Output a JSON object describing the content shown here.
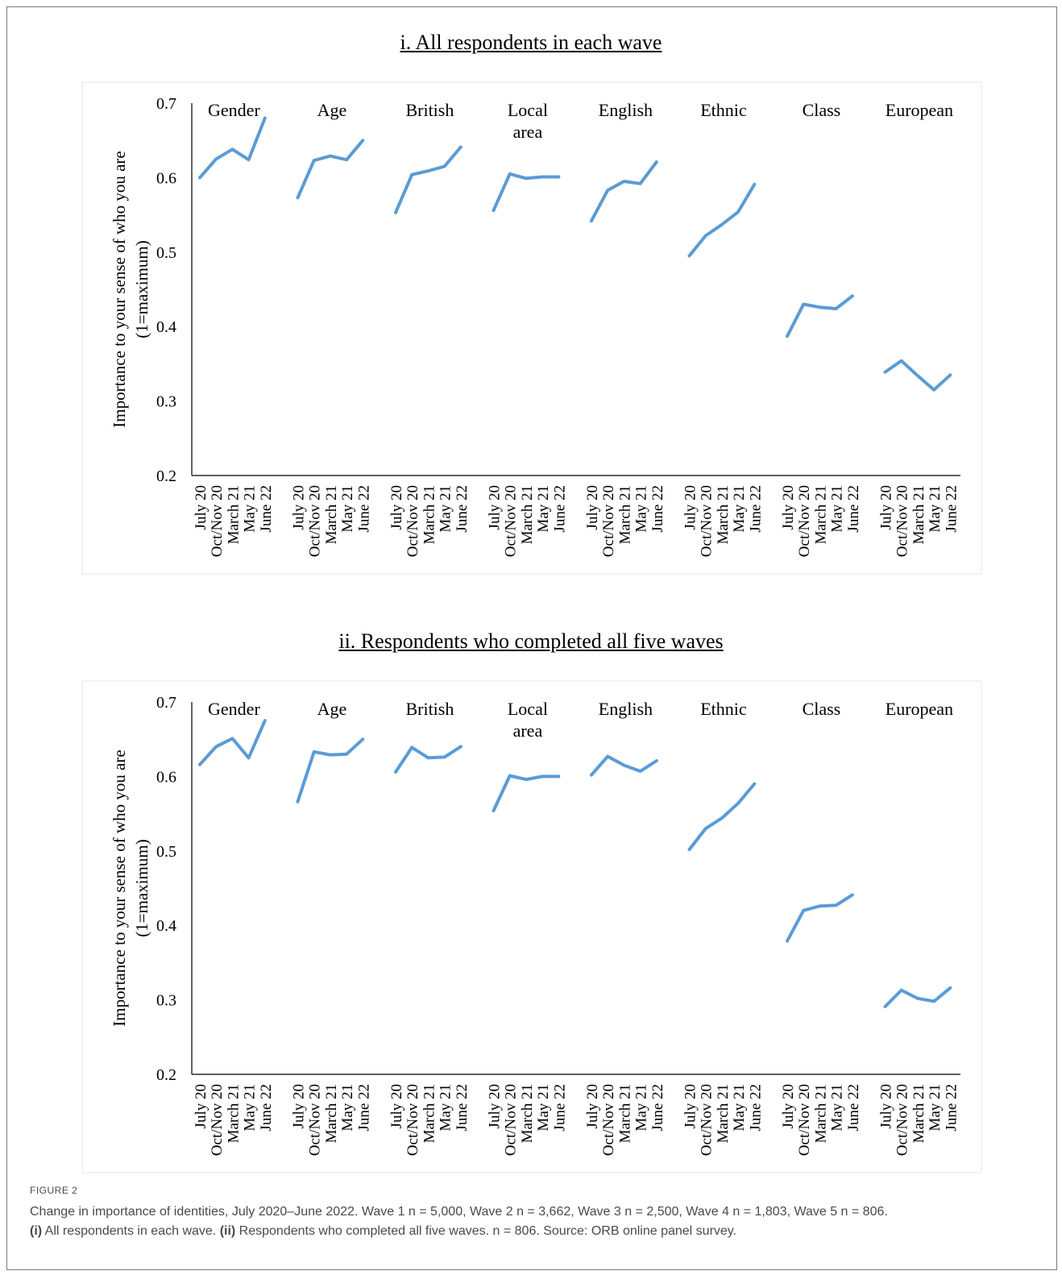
{
  "figure": {
    "label": "FIGURE 2",
    "caption_line1": "Change in importance of identities, July 2020–June 2022. Wave 1 n = 5,000, Wave 2 n = 3,662, Wave 3 n = 2,500, Wave 4 n = 1,803, Wave 5 n = 806.",
    "caption_line2_parts": [
      "(i)",
      " All respondents in each wave. ",
      "(ii)",
      " Respondents who completed all five waves. n = 806. Source: ORB online panel survey."
    ]
  },
  "chart_data": [
    {
      "type": "line",
      "title": "i. All respondents in each wave",
      "ylabel_lines": [
        "Importance to your sense of who you are",
        "(1=maximum)"
      ],
      "ylim": [
        0.2,
        0.7
      ],
      "yticks": [
        "0.2",
        "0.3",
        "0.4",
        "0.5",
        "0.6",
        "0.7"
      ],
      "grid": false,
      "line_color": "#5b9bd5",
      "x": [
        "July 20",
        "Oct/Nov 20",
        "March 21",
        "May 21",
        "June 22"
      ],
      "groups": [
        {
          "label_lines": [
            "Gender"
          ],
          "values": [
            0.6,
            0.625,
            0.638,
            0.624,
            0.68
          ]
        },
        {
          "label_lines": [
            "Age"
          ],
          "values": [
            0.573,
            0.623,
            0.629,
            0.624,
            0.65
          ]
        },
        {
          "label_lines": [
            "British"
          ],
          "values": [
            0.553,
            0.604,
            0.609,
            0.615,
            0.641
          ]
        },
        {
          "label_lines": [
            "Local",
            "area"
          ],
          "values": [
            0.556,
            0.605,
            0.599,
            0.601,
            0.601
          ]
        },
        {
          "label_lines": [
            "English"
          ],
          "values": [
            0.542,
            0.583,
            0.595,
            0.592,
            0.621
          ]
        },
        {
          "label_lines": [
            "Ethnic"
          ],
          "values": [
            0.495,
            0.522,
            0.537,
            0.554,
            0.591
          ]
        },
        {
          "label_lines": [
            "Class"
          ],
          "values": [
            0.387,
            0.43,
            0.426,
            0.424,
            0.441
          ]
        },
        {
          "label_lines": [
            "European"
          ],
          "values": [
            0.339,
            0.354,
            0.334,
            0.315,
            0.335
          ]
        }
      ]
    },
    {
      "type": "line",
      "title": "ii. Respondents who completed all five waves",
      "ylabel_lines": [
        "Importance to your sense of who you are",
        "(1=maximum)"
      ],
      "ylim": [
        0.2,
        0.7
      ],
      "yticks": [
        "0.2",
        "0.3",
        "0.4",
        "0.5",
        "0.6",
        "0.7"
      ],
      "grid": false,
      "line_color": "#5b9bd5",
      "x": [
        "July 20",
        "Oct/Nov 20",
        "March 21",
        "May 21",
        "June 22"
      ],
      "groups": [
        {
          "label_lines": [
            "Gender"
          ],
          "values": [
            0.616,
            0.64,
            0.651,
            0.625,
            0.675
          ]
        },
        {
          "label_lines": [
            "Age"
          ],
          "values": [
            0.566,
            0.633,
            0.629,
            0.63,
            0.65
          ]
        },
        {
          "label_lines": [
            "British"
          ],
          "values": [
            0.606,
            0.639,
            0.625,
            0.626,
            0.64
          ]
        },
        {
          "label_lines": [
            "Local",
            "area"
          ],
          "values": [
            0.554,
            0.601,
            0.596,
            0.6,
            0.6
          ]
        },
        {
          "label_lines": [
            "English"
          ],
          "values": [
            0.602,
            0.627,
            0.615,
            0.607,
            0.621
          ]
        },
        {
          "label_lines": [
            "Ethnic"
          ],
          "values": [
            0.502,
            0.53,
            0.544,
            0.564,
            0.59
          ]
        },
        {
          "label_lines": [
            "Class"
          ],
          "values": [
            0.379,
            0.42,
            0.426,
            0.427,
            0.441
          ]
        },
        {
          "label_lines": [
            "European"
          ],
          "values": [
            0.291,
            0.313,
            0.302,
            0.298,
            0.316
          ]
        }
      ]
    }
  ]
}
